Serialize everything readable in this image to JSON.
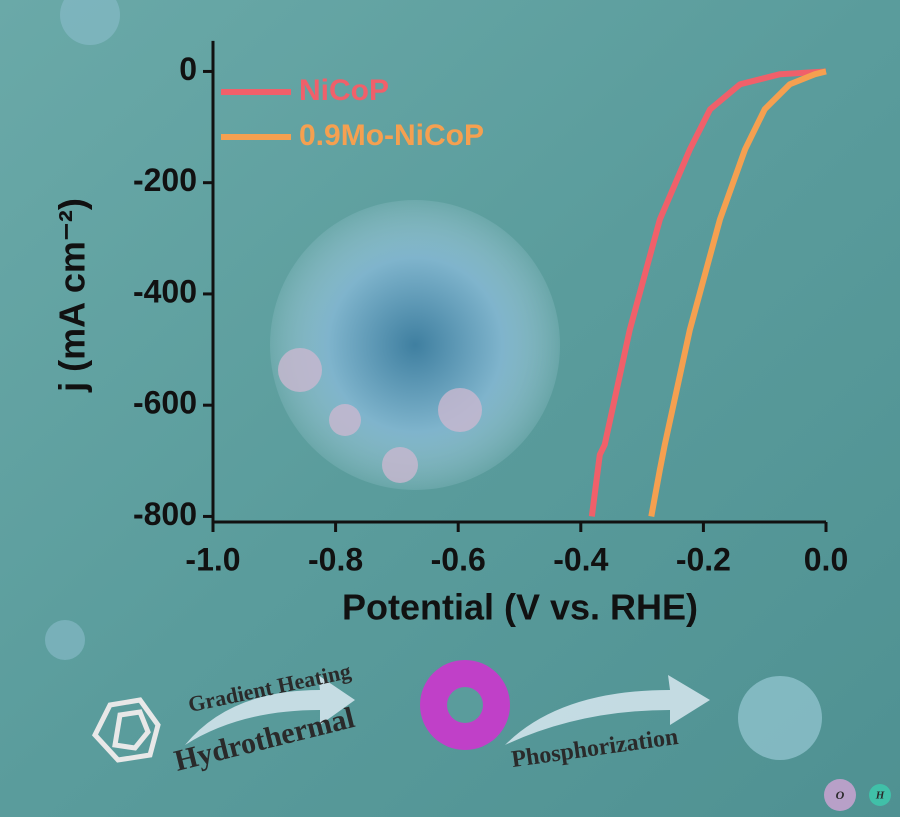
{
  "chart_data": {
    "type": "line",
    "xlabel": "Potential (V vs. RHE)",
    "ylabel": "j (mA cm⁻²)",
    "xlim": [
      -1.0,
      0.0
    ],
    "ylim": [
      -810,
      55
    ],
    "xticks": [
      {
        "value": -1,
        "label": "-1.0"
      },
      -0.8,
      -0.6,
      -0.4,
      -0.2,
      {
        "value": 0,
        "label": "0.0"
      }
    ],
    "yticks": [
      0,
      -200,
      -400,
      -600,
      -800
    ],
    "legend": "upper left",
    "series": [
      {
        "name": "NiCoP",
        "color": "#f0606a",
        "x": [
          -0.382,
          -0.369,
          -0.361,
          -0.32,
          -0.271,
          -0.222,
          -0.189,
          -0.14,
          -0.075,
          0
        ],
        "values": [
          -800,
          -689,
          -671,
          -464,
          -266,
          -140,
          -68,
          -23,
          -5,
          0
        ]
      },
      {
        "name": "0.9Mo-NiCoP",
        "color": "#f5a050",
        "x": [
          -0.285,
          -0.271,
          -0.263,
          -0.222,
          -0.173,
          -0.132,
          -0.1,
          -0.059,
          -0.018,
          0
        ],
        "values": [
          -800,
          -716,
          -671,
          -464,
          -266,
          -140,
          -68,
          -23,
          -5,
          0
        ]
      }
    ],
    "annotations": [
      "Gradient Heating",
      "Hydrothermal",
      "Phosphorization",
      "O",
      "H"
    ]
  }
}
